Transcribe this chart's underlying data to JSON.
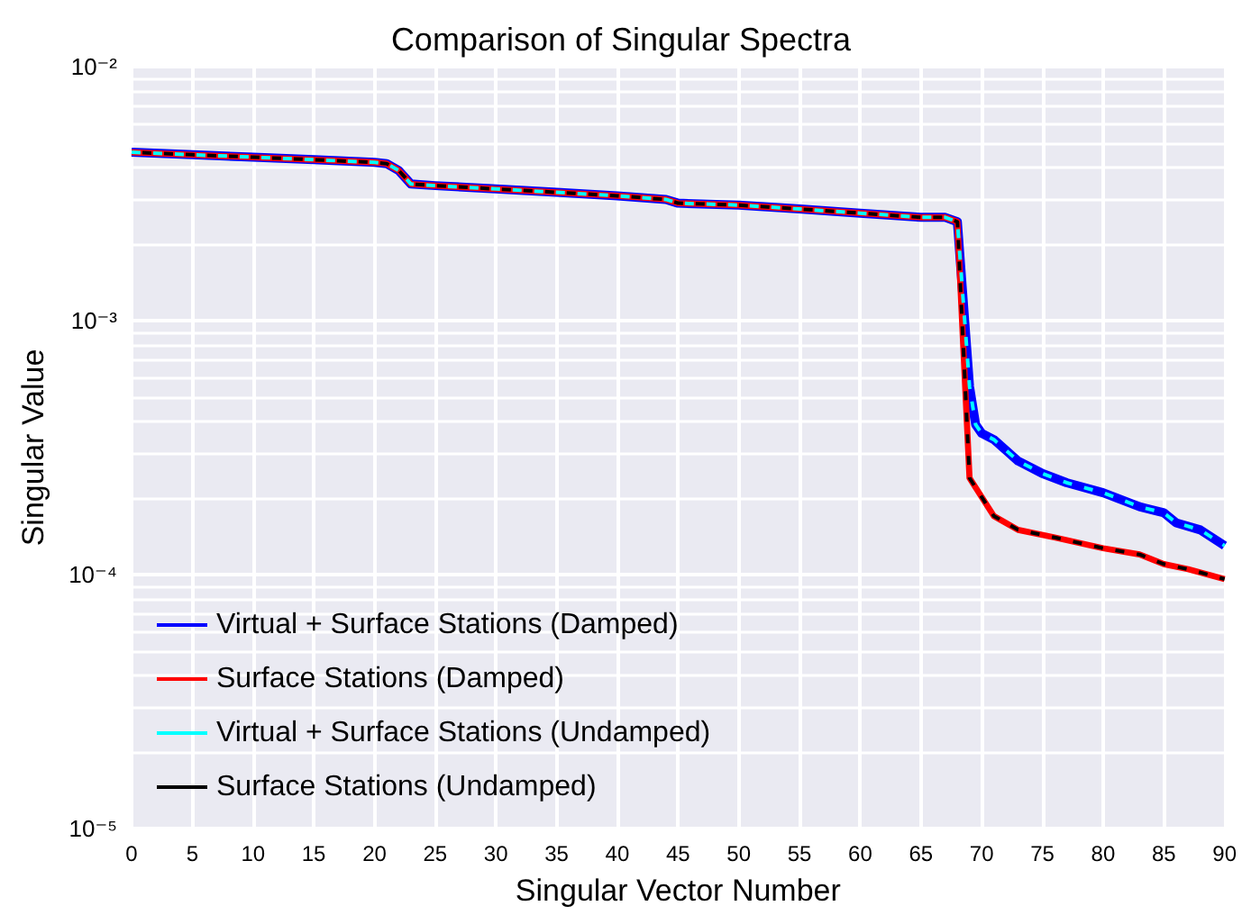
{
  "chart_data": {
    "type": "line",
    "title": "Comparison of Singular Spectra",
    "xlabel": "Singular Vector Number",
    "ylabel": "Singular Value",
    "xlim": [
      0,
      90
    ],
    "xticks": [
      0,
      5,
      10,
      15,
      20,
      25,
      30,
      35,
      40,
      45,
      50,
      55,
      60,
      65,
      70,
      75,
      80,
      85,
      90
    ],
    "ylim": [
      1e-05,
      0.01
    ],
    "yticks": [
      {
        "value": 1e-05,
        "label": "10⁻⁵"
      },
      {
        "value": 0.0001,
        "label": "10⁻⁴"
      },
      {
        "value": 0.001,
        "label": "10⁻³"
      },
      {
        "value": 0.01,
        "label": "10⁻²"
      }
    ],
    "log": "y",
    "grid": true,
    "legend": "bottom left",
    "marker": "none",
    "series": [
      {
        "name": "Virtual + Surface Stations (Damped)",
        "color": "#0000ff",
        "line_style": "solid",
        "x": [
          0,
          5,
          10,
          15,
          20,
          21,
          22,
          23,
          25,
          30,
          35,
          40,
          44,
          45,
          50,
          55,
          60,
          65,
          67,
          68,
          69,
          69.5,
          70,
          71,
          73,
          75,
          77,
          80,
          83,
          85,
          86,
          88,
          90
        ],
        "values": [
          0.0046,
          0.0045,
          0.0044,
          0.0043,
          0.0042,
          0.00415,
          0.0039,
          0.00345,
          0.0034,
          0.0033,
          0.0032,
          0.0031,
          0.003,
          0.0029,
          0.00285,
          0.00275,
          0.00265,
          0.00255,
          0.00255,
          0.00245,
          0.00055,
          0.00039,
          0.00036,
          0.00034,
          0.00028,
          0.00025,
          0.00023,
          0.00021,
          0.000185,
          0.000175,
          0.00016,
          0.00015,
          0.00013
        ]
      },
      {
        "name": "Surface Stations (Damped)",
        "color": "#ff0000",
        "line_style": "solid",
        "x": [
          0,
          5,
          10,
          15,
          20,
          21,
          22,
          23,
          25,
          30,
          35,
          40,
          44,
          45,
          50,
          55,
          60,
          65,
          67,
          68,
          69,
          71,
          73,
          76,
          80,
          83,
          85,
          87,
          90
        ],
        "values": [
          0.0046,
          0.0045,
          0.0044,
          0.0043,
          0.0042,
          0.00415,
          0.0039,
          0.00345,
          0.0034,
          0.0033,
          0.0032,
          0.0031,
          0.003,
          0.0029,
          0.00285,
          0.00275,
          0.00265,
          0.00255,
          0.00255,
          0.00245,
          0.00024,
          0.00017,
          0.00015,
          0.00014,
          0.000127,
          0.00012,
          0.00011,
          0.000105,
          9.6e-05
        ]
      },
      {
        "name": "Virtual + Surface Stations (Undamped)",
        "color": "#00ffff",
        "line_style": "dashed",
        "x": [
          0,
          5,
          10,
          15,
          20,
          21,
          22,
          23,
          25,
          30,
          35,
          40,
          44,
          45,
          50,
          55,
          60,
          65,
          67,
          68,
          69,
          69.5,
          70,
          71,
          73,
          75,
          77,
          80,
          83,
          85,
          86,
          88,
          90
        ],
        "values": [
          0.0046,
          0.0045,
          0.0044,
          0.0043,
          0.0042,
          0.00415,
          0.0039,
          0.00345,
          0.0034,
          0.0033,
          0.0032,
          0.0031,
          0.003,
          0.0029,
          0.00285,
          0.00275,
          0.00265,
          0.00255,
          0.00255,
          0.00245,
          0.00055,
          0.00039,
          0.00036,
          0.00034,
          0.00028,
          0.00025,
          0.00023,
          0.00021,
          0.000185,
          0.000175,
          0.00016,
          0.00015,
          0.00013
        ]
      },
      {
        "name": "Surface Stations (Undamped)",
        "color": "#000000",
        "line_style": "dashed",
        "x": [
          0,
          5,
          10,
          15,
          20,
          21,
          22,
          23,
          25,
          30,
          35,
          40,
          44,
          45,
          50,
          55,
          60,
          65,
          67,
          68,
          69,
          71,
          73,
          76,
          80,
          83,
          85,
          87,
          90
        ],
        "values": [
          0.0046,
          0.0045,
          0.0044,
          0.0043,
          0.0042,
          0.00415,
          0.0039,
          0.00345,
          0.0034,
          0.0033,
          0.0032,
          0.0031,
          0.003,
          0.0029,
          0.00285,
          0.00275,
          0.00265,
          0.00255,
          0.00255,
          0.00245,
          0.00024,
          0.00017,
          0.00015,
          0.00014,
          0.000127,
          0.00012,
          0.00011,
          0.000105,
          9.6e-05
        ]
      }
    ]
  }
}
